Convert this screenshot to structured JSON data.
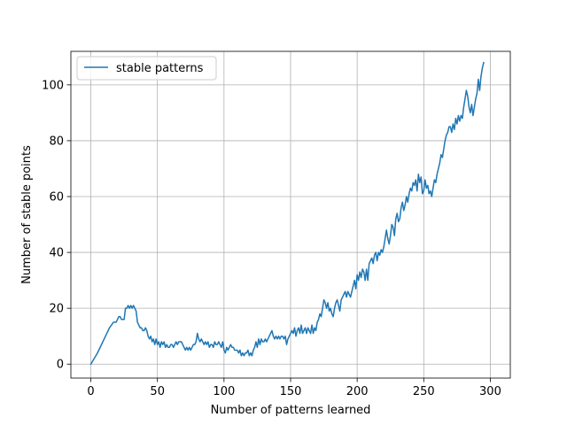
{
  "chart_data": {
    "type": "line",
    "title": "",
    "xlabel": "Number of patterns learned",
    "ylabel": "Number of stable points",
    "xlim": [
      -15,
      315
    ],
    "ylim": [
      -5,
      112
    ],
    "xticks": [
      0,
      50,
      100,
      150,
      200,
      250,
      300
    ],
    "yticks": [
      0,
      20,
      40,
      60,
      80,
      100
    ],
    "grid": true,
    "legend_position": "top-left",
    "series": [
      {
        "name": "stable patterns",
        "color": "#1f77b4",
        "points": [
          [
            0,
            0
          ],
          [
            5,
            4
          ],
          [
            10,
            9
          ],
          [
            14,
            13
          ],
          [
            17,
            15
          ],
          [
            19,
            15
          ],
          [
            20,
            16
          ],
          [
            21,
            17
          ],
          [
            22,
            17
          ],
          [
            23,
            16
          ],
          [
            24,
            16
          ],
          [
            25,
            16
          ],
          [
            26,
            20
          ],
          [
            27,
            20
          ],
          [
            28,
            21
          ],
          [
            29,
            20
          ],
          [
            30,
            21
          ],
          [
            31,
            20
          ],
          [
            32,
            21
          ],
          [
            33,
            20
          ],
          [
            34,
            19
          ],
          [
            35,
            15
          ],
          [
            36,
            14
          ],
          [
            37,
            13
          ],
          [
            38,
            13
          ],
          [
            39,
            12
          ],
          [
            40,
            12
          ],
          [
            41,
            13
          ],
          [
            42,
            12
          ],
          [
            43,
            10
          ],
          [
            44,
            9
          ],
          [
            45,
            10
          ],
          [
            46,
            8
          ],
          [
            47,
            9
          ],
          [
            48,
            7
          ],
          [
            49,
            9
          ],
          [
            50,
            7
          ],
          [
            51,
            8
          ],
          [
            52,
            6
          ],
          [
            53,
            8
          ],
          [
            54,
            7
          ],
          [
            55,
            8
          ],
          [
            56,
            6
          ],
          [
            57,
            7
          ],
          [
            58,
            6
          ],
          [
            59,
            6
          ],
          [
            60,
            7
          ],
          [
            61,
            7
          ],
          [
            62,
            6
          ],
          [
            63,
            7
          ],
          [
            64,
            8
          ],
          [
            65,
            7
          ],
          [
            66,
            8
          ],
          [
            67,
            8
          ],
          [
            68,
            8
          ],
          [
            69,
            7
          ],
          [
            70,
            6
          ],
          [
            71,
            5
          ],
          [
            72,
            6
          ],
          [
            73,
            5
          ],
          [
            74,
            6
          ],
          [
            75,
            5
          ],
          [
            76,
            6
          ],
          [
            77,
            7
          ],
          [
            78,
            7
          ],
          [
            79,
            8
          ],
          [
            80,
            11
          ],
          [
            81,
            9
          ],
          [
            82,
            8
          ],
          [
            83,
            9
          ],
          [
            84,
            8
          ],
          [
            85,
            7
          ],
          [
            86,
            8
          ],
          [
            87,
            7
          ],
          [
            88,
            8
          ],
          [
            89,
            6
          ],
          [
            90,
            7
          ],
          [
            91,
            7
          ],
          [
            92,
            6
          ],
          [
            93,
            8
          ],
          [
            94,
            7
          ],
          [
            95,
            7
          ],
          [
            96,
            8
          ],
          [
            97,
            7
          ],
          [
            98,
            6
          ],
          [
            99,
            8
          ],
          [
            100,
            5
          ],
          [
            101,
            4
          ],
          [
            102,
            6
          ],
          [
            103,
            5
          ],
          [
            104,
            6
          ],
          [
            105,
            7
          ],
          [
            106,
            6
          ],
          [
            107,
            6
          ],
          [
            108,
            5
          ],
          [
            109,
            5
          ],
          [
            110,
            5
          ],
          [
            111,
            4
          ],
          [
            112,
            5
          ],
          [
            113,
            3
          ],
          [
            114,
            4
          ],
          [
            115,
            3
          ],
          [
            116,
            4
          ],
          [
            117,
            4
          ],
          [
            118,
            5
          ],
          [
            119,
            3
          ],
          [
            120,
            4
          ],
          [
            121,
            3
          ],
          [
            122,
            5
          ],
          [
            123,
            6
          ],
          [
            124,
            8
          ],
          [
            125,
            6
          ],
          [
            126,
            9
          ],
          [
            127,
            7
          ],
          [
            128,
            9
          ],
          [
            129,
            8
          ],
          [
            130,
            8
          ],
          [
            131,
            9
          ],
          [
            132,
            8
          ],
          [
            133,
            9
          ],
          [
            134,
            10
          ],
          [
            135,
            11
          ],
          [
            136,
            12
          ],
          [
            137,
            10
          ],
          [
            138,
            9
          ],
          [
            139,
            10
          ],
          [
            140,
            9
          ],
          [
            141,
            10
          ],
          [
            142,
            9
          ],
          [
            143,
            10
          ],
          [
            144,
            10
          ],
          [
            145,
            9
          ],
          [
            146,
            10
          ],
          [
            147,
            7
          ],
          [
            148,
            9
          ],
          [
            149,
            10
          ],
          [
            150,
            11
          ],
          [
            151,
            12
          ],
          [
            152,
            11
          ],
          [
            153,
            13
          ],
          [
            154,
            10
          ],
          [
            155,
            12
          ],
          [
            156,
            13
          ],
          [
            157,
            11
          ],
          [
            158,
            14
          ],
          [
            159,
            11
          ],
          [
            160,
            12
          ],
          [
            161,
            13
          ],
          [
            162,
            11
          ],
          [
            163,
            13
          ],
          [
            164,
            12
          ],
          [
            165,
            11
          ],
          [
            166,
            14
          ],
          [
            167,
            11
          ],
          [
            168,
            13
          ],
          [
            169,
            12
          ],
          [
            170,
            15
          ],
          [
            171,
            16
          ],
          [
            172,
            18
          ],
          [
            173,
            17
          ],
          [
            174,
            20
          ],
          [
            175,
            23
          ],
          [
            176,
            22
          ],
          [
            177,
            20
          ],
          [
            178,
            22
          ],
          [
            179,
            19
          ],
          [
            180,
            20
          ],
          [
            181,
            18
          ],
          [
            182,
            17
          ],
          [
            183,
            20
          ],
          [
            184,
            22
          ],
          [
            185,
            23
          ],
          [
            186,
            21
          ],
          [
            187,
            19
          ],
          [
            188,
            23
          ],
          [
            189,
            24
          ],
          [
            190,
            25
          ],
          [
            191,
            26
          ],
          [
            192,
            24
          ],
          [
            193,
            26
          ],
          [
            194,
            25
          ],
          [
            195,
            24
          ],
          [
            196,
            26
          ],
          [
            197,
            28
          ],
          [
            198,
            30
          ],
          [
            199,
            27
          ],
          [
            200,
            32
          ],
          [
            201,
            30
          ],
          [
            202,
            33
          ],
          [
            203,
            31
          ],
          [
            204,
            34
          ],
          [
            205,
            33
          ],
          [
            206,
            30
          ],
          [
            207,
            34
          ],
          [
            208,
            30
          ],
          [
            209,
            36
          ],
          [
            210,
            37
          ],
          [
            211,
            38
          ],
          [
            212,
            36
          ],
          [
            213,
            39
          ],
          [
            214,
            40
          ],
          [
            215,
            37
          ],
          [
            216,
            40
          ],
          [
            217,
            39
          ],
          [
            218,
            41
          ],
          [
            219,
            40
          ],
          [
            220,
            42
          ],
          [
            221,
            45
          ],
          [
            222,
            48
          ],
          [
            223,
            45
          ],
          [
            224,
            43
          ],
          [
            225,
            46
          ],
          [
            226,
            50
          ],
          [
            227,
            49
          ],
          [
            228,
            46
          ],
          [
            229,
            52
          ],
          [
            230,
            54
          ],
          [
            231,
            51
          ],
          [
            232,
            52
          ],
          [
            233,
            56
          ],
          [
            234,
            58
          ],
          [
            235,
            55
          ],
          [
            236,
            57
          ],
          [
            237,
            60
          ],
          [
            238,
            58
          ],
          [
            239,
            61
          ],
          [
            240,
            63
          ],
          [
            241,
            62
          ],
          [
            242,
            65
          ],
          [
            243,
            64
          ],
          [
            244,
            66
          ],
          [
            245,
            62
          ],
          [
            246,
            68
          ],
          [
            247,
            65
          ],
          [
            248,
            67
          ],
          [
            249,
            61
          ],
          [
            250,
            62
          ],
          [
            251,
            66
          ],
          [
            252,
            63
          ],
          [
            253,
            64
          ],
          [
            254,
            61
          ],
          [
            255,
            62
          ],
          [
            256,
            60
          ],
          [
            257,
            63
          ],
          [
            258,
            66
          ],
          [
            259,
            65
          ],
          [
            260,
            68
          ],
          [
            261,
            70
          ],
          [
            262,
            72
          ],
          [
            263,
            75
          ],
          [
            264,
            74
          ],
          [
            265,
            77
          ],
          [
            266,
            80
          ],
          [
            267,
            82
          ],
          [
            268,
            83
          ],
          [
            269,
            85
          ],
          [
            270,
            85
          ],
          [
            271,
            83
          ],
          [
            272,
            86
          ],
          [
            273,
            84
          ],
          [
            274,
            88
          ],
          [
            275,
            86
          ],
          [
            276,
            89
          ],
          [
            277,
            87
          ],
          [
            278,
            89
          ],
          [
            279,
            88
          ],
          [
            280,
            92
          ],
          [
            281,
            95
          ],
          [
            282,
            98
          ],
          [
            283,
            96
          ],
          [
            284,
            92
          ],
          [
            285,
            90
          ],
          [
            286,
            93
          ],
          [
            287,
            89
          ],
          [
            288,
            92
          ],
          [
            289,
            95
          ],
          [
            290,
            97
          ],
          [
            291,
            102
          ],
          [
            292,
            98
          ],
          [
            293,
            103
          ],
          [
            294,
            106
          ],
          [
            295,
            108
          ]
        ]
      }
    ]
  }
}
